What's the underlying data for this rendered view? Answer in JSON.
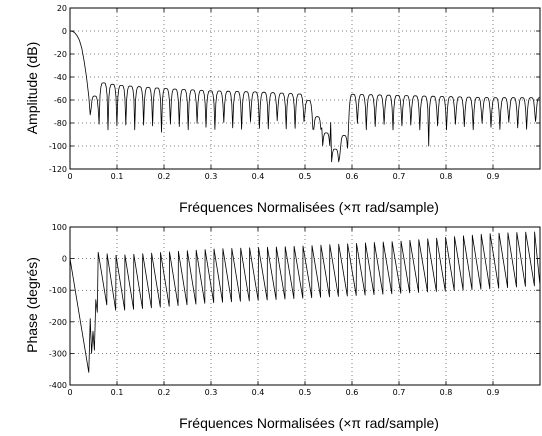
{
  "chart_data": [
    {
      "type": "line",
      "title": "",
      "xlabel": "Fréquences Normalisées  (×π rad/sample)",
      "ylabel": "Amplitude (dB)",
      "xlim": [
        0,
        1
      ],
      "ylim": [
        -120,
        20
      ],
      "xticks": [
        "0",
        "0.1",
        "0.2",
        "0.3",
        "0.4",
        "0.5",
        "0.6",
        "0.7",
        "0.8",
        "0.9"
      ],
      "yticks": [
        "20",
        "0",
        "-20",
        "-40",
        "-60",
        "-80",
        "-100",
        "-120"
      ],
      "grid": true,
      "series": [
        {
          "description": "lowpass FIR magnitude response: passband near 0 dB up to ~0.03, transition to stopband, sidelobes with peaks rising from about -45 dB near 0.07 down to about -58 dB near 1.0, notch minima between -75 and -110 dB",
          "x": [
            0,
            0.01,
            0.02,
            0.03,
            0.04,
            0.045,
            0.05,
            0.06,
            0.07,
            0.1,
            0.2,
            0.3,
            0.4,
            0.5,
            0.574,
            0.6,
            0.7,
            0.8,
            0.9,
            1.0
          ],
          "y": [
            0,
            -2,
            -8,
            -25,
            -55,
            -75,
            -60,
            -46,
            -45,
            -47,
            -50,
            -52,
            -53,
            -55,
            -110,
            -55,
            -56,
            -57,
            -58,
            -58
          ]
        }
      ]
    },
    {
      "type": "line",
      "title": "",
      "xlabel": "Fréquences Normalisées (×π rad/sample)",
      "ylabel": "Phase (degrés)",
      "xlim": [
        0,
        1
      ],
      "ylim": [
        -400,
        100
      ],
      "xticks": [
        "0",
        "0.1",
        "0.2",
        "0.3",
        "0.4",
        "0.5",
        "0.6",
        "0.7",
        "0.8",
        "0.9"
      ],
      "yticks": [
        "100",
        "0",
        "-100",
        "-200",
        "-300",
        "-400"
      ],
      "grid": true,
      "series": [
        {
          "description": "sawtooth phase response: linear decrease from 0 to about -360 at 0.04, then wraps; stopband sawtooth with tops rising from about 0 to +85 and bottoms rising from about -175 to -85 across the band",
          "x": [
            0,
            0.04,
            0.06,
            0.1,
            0.3,
            0.5,
            0.7,
            0.9,
            1.0
          ],
          "y_top": [
            0,
            -190,
            20,
            10,
            30,
            40,
            55,
            80,
            85
          ],
          "y_bottom": [
            0,
            -360,
            -130,
            -165,
            -140,
            -125,
            -110,
            -95,
            -85
          ]
        }
      ]
    }
  ]
}
